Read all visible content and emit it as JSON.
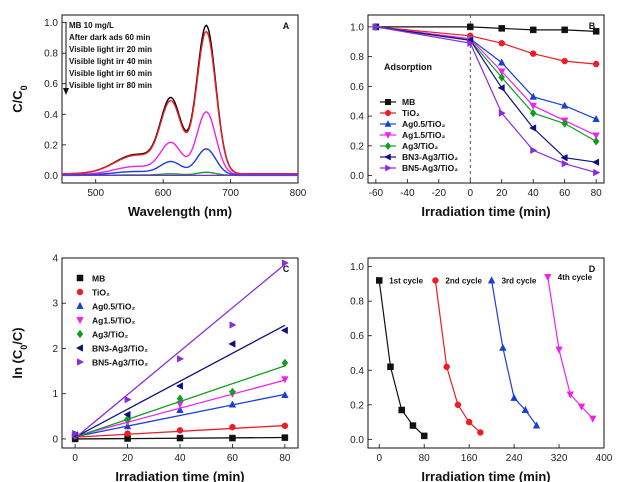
{
  "chart_data": [
    {
      "id": "A",
      "type": "line",
      "panel_label": "A",
      "xlabel": "Wavelength (nm)",
      "ylabel": "C/C0",
      "xlim": [
        450,
        800
      ],
      "ylim": [
        -0.05,
        1.05
      ],
      "xticks": [
        500,
        600,
        700,
        800
      ],
      "yticks": [
        0.0,
        0.2,
        0.4,
        0.6,
        0.8,
        1.0
      ],
      "legend_position": "top-left",
      "legend_note": "MB 10 mg/L",
      "series": [
        {
          "name": "After dark ads 60 min",
          "color": "#000000",
          "peak": 0.97,
          "base": 0.01
        },
        {
          "name": "Visible light irr 20 min",
          "color": "#ee1c24",
          "peak": 0.93,
          "base": 0.01
        },
        {
          "name": "Visible light irr 40 min",
          "color": "#ee22ee",
          "peak": 0.41,
          "base": 0.005
        },
        {
          "name": "Visible light irr 60 min",
          "color": "#1a3fd6",
          "peak": 0.17,
          "base": 0.003
        },
        {
          "name": "Visible light irr 80 min",
          "color": "#10a020",
          "peak": 0.02,
          "base": 0.0
        }
      ],
      "extra_baseline": {
        "color": "#7a2fd6",
        "value": 0.0
      }
    },
    {
      "id": "B",
      "type": "line",
      "panel_label": "B",
      "xlabel": "Irradiation time (min)",
      "ylabel": "",
      "xlim": [
        -65,
        85
      ],
      "ylim": [
        -0.05,
        1.08
      ],
      "xticks": [
        -60,
        -40,
        -20,
        0,
        20,
        40,
        60,
        80
      ],
      "yticks": [
        0.0,
        0.2,
        0.4,
        0.6,
        0.8,
        1.0
      ],
      "annotation": "Adsorption",
      "legend_position": "left",
      "x": [
        -60,
        0,
        20,
        40,
        60,
        80
      ],
      "series": [
        {
          "name": "MB",
          "color": "#111111",
          "marker": "square",
          "values": [
            1.0,
            1.0,
            0.99,
            0.98,
            0.98,
            0.97
          ]
        },
        {
          "name": "TiO₂",
          "color": "#ee1c24",
          "marker": "circle",
          "values": [
            1.0,
            0.94,
            0.89,
            0.82,
            0.77,
            0.75
          ]
        },
        {
          "name": "Ag0.5/TiO₂",
          "color": "#1a3fd6",
          "marker": "triangle-up",
          "values": [
            1.0,
            0.92,
            0.76,
            0.53,
            0.47,
            0.38
          ]
        },
        {
          "name": "Ag1.5/TiO₂",
          "color": "#ee22ee",
          "marker": "triangle-down",
          "values": [
            1.0,
            0.92,
            0.7,
            0.47,
            0.37,
            0.27
          ]
        },
        {
          "name": "Ag3/TiO₂",
          "color": "#10a020",
          "marker": "diamond",
          "values": [
            1.0,
            0.91,
            0.66,
            0.42,
            0.35,
            0.23
          ]
        },
        {
          "name": "BN3-Ag3/TiO₂",
          "color": "#101080",
          "marker": "triangle-left",
          "values": [
            1.0,
            0.91,
            0.59,
            0.32,
            0.12,
            0.09
          ]
        },
        {
          "name": "BN5-Ag3/TiO₂",
          "color": "#8a2be2",
          "marker": "triangle-right",
          "values": [
            1.0,
            0.89,
            0.42,
            0.17,
            0.08,
            0.02
          ]
        }
      ]
    },
    {
      "id": "C",
      "type": "scatter",
      "panel_label": "C",
      "xlabel": "Irradiation time (min)",
      "ylabel": "ln (C0/C)",
      "xlim": [
        -5,
        85
      ],
      "ylim": [
        -0.2,
        4.0
      ],
      "xticks": [
        0,
        20,
        40,
        60,
        80
      ],
      "yticks": [
        0,
        1,
        2,
        3,
        4
      ],
      "legend_position": "top-left",
      "x": [
        0,
        20,
        40,
        60,
        80
      ],
      "series": [
        {
          "name": "MB",
          "color": "#111111",
          "marker": "square",
          "values": [
            0.0,
            0.01,
            0.02,
            0.02,
            0.03
          ],
          "fit": [
            0.0,
            0.0004
          ]
        },
        {
          "name": "TiO₂",
          "color": "#ee1c24",
          "marker": "circle",
          "values": [
            0.06,
            0.12,
            0.19,
            0.26,
            0.29
          ],
          "fit": [
            0.04,
            0.0032
          ]
        },
        {
          "name": "Ag0.5/TiO₂",
          "color": "#1a3fd6",
          "marker": "triangle-up",
          "values": [
            0.08,
            0.28,
            0.64,
            0.76,
            0.97
          ],
          "fit": [
            0.05,
            0.0117
          ]
        },
        {
          "name": "Ag1.5/TiO₂",
          "color": "#ee22ee",
          "marker": "triangle-down",
          "values": [
            0.08,
            0.38,
            0.77,
            1.0,
            1.32
          ],
          "fit": [
            0.06,
            0.0155
          ]
        },
        {
          "name": "Ag3/TiO₂",
          "color": "#10a020",
          "marker": "diamond",
          "values": [
            0.09,
            0.44,
            0.89,
            1.04,
            1.68
          ],
          "fit": [
            0.04,
            0.0197
          ]
        },
        {
          "name": "BN3-Ag3/TiO₂",
          "color": "#101080",
          "marker": "triangle-left",
          "values": [
            0.09,
            0.54,
            1.17,
            2.1,
            2.4
          ],
          "fit": [
            0.04,
            0.0309
          ]
        },
        {
          "name": "BN5-Ag3/TiO₂",
          "color": "#8a2be2",
          "marker": "triangle-right",
          "values": [
            0.12,
            0.87,
            1.77,
            2.52,
            3.89
          ],
          "fit": [
            0.02,
            0.048
          ]
        }
      ]
    },
    {
      "id": "D",
      "type": "line",
      "panel_label": "D",
      "xlabel": "Irradiation time (min)",
      "ylabel": "",
      "xlim": [
        -20,
        400
      ],
      "ylim": [
        -0.05,
        1.05
      ],
      "xticks": [
        0,
        80,
        160,
        240,
        320,
        400
      ],
      "yticks": [
        0.0,
        0.2,
        0.4,
        0.6,
        0.8,
        1.0
      ],
      "series": [
        {
          "name": "1st cycle",
          "color": "#111111",
          "marker": "square",
          "x": [
            0,
            20,
            40,
            60,
            80
          ],
          "values": [
            0.92,
            0.42,
            0.17,
            0.08,
            0.02
          ]
        },
        {
          "name": "2nd cycle",
          "color": "#ee1c24",
          "marker": "circle",
          "x": [
            100,
            120,
            140,
            160,
            180
          ],
          "values": [
            0.92,
            0.42,
            0.2,
            0.1,
            0.04
          ]
        },
        {
          "name": "3rd cycle",
          "color": "#1a3fd6",
          "marker": "triangle-up",
          "x": [
            200,
            220,
            240,
            260,
            280
          ],
          "values": [
            0.92,
            0.53,
            0.24,
            0.17,
            0.08
          ]
        },
        {
          "name": "4th cycle",
          "color": "#ee22ee",
          "marker": "triangle-down",
          "x": [
            300,
            320,
            340,
            360,
            380
          ],
          "values": [
            0.94,
            0.52,
            0.26,
            0.19,
            0.12
          ]
        }
      ]
    }
  ]
}
